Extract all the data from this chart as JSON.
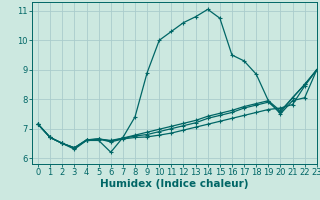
{
  "title": "",
  "xlabel": "Humidex (Indice chaleur)",
  "xlim": [
    -0.5,
    23
  ],
  "ylim": [
    5.8,
    11.3
  ],
  "xticks": [
    0,
    1,
    2,
    3,
    4,
    5,
    6,
    7,
    8,
    9,
    10,
    11,
    12,
    13,
    14,
    15,
    16,
    17,
    18,
    19,
    20,
    21,
    22,
    23
  ],
  "yticks": [
    6,
    7,
    8,
    9,
    10,
    11
  ],
  "background_color": "#cce8e0",
  "grid_color": "#aacccc",
  "line_color": "#006666",
  "lines": [
    {
      "x": [
        0,
        1,
        2,
        3,
        4,
        5,
        6,
        7,
        8,
        9,
        10,
        11,
        12,
        13,
        14,
        15,
        16,
        17,
        18,
        19,
        20,
        21,
        22,
        23
      ],
      "y": [
        7.15,
        6.7,
        6.5,
        6.3,
        6.6,
        6.6,
        6.2,
        6.7,
        7.4,
        8.9,
        10.0,
        10.3,
        10.6,
        10.8,
        11.05,
        10.75,
        9.5,
        9.3,
        8.85,
        7.95,
        7.5,
        7.95,
        8.05,
        9.0
      ]
    },
    {
      "x": [
        0,
        1,
        2,
        3,
        4,
        5,
        6,
        7,
        8,
        9,
        10,
        11,
        12,
        13,
        14,
        15,
        16,
        17,
        18,
        19,
        20,
        21,
        22,
        23
      ],
      "y": [
        7.15,
        6.7,
        6.5,
        6.35,
        6.6,
        6.65,
        6.55,
        6.65,
        6.7,
        6.72,
        6.78,
        6.85,
        6.95,
        7.05,
        7.15,
        7.25,
        7.35,
        7.45,
        7.55,
        7.65,
        7.7,
        7.82,
        8.45,
        9.0
      ]
    },
    {
      "x": [
        0,
        1,
        2,
        3,
        4,
        5,
        6,
        7,
        8,
        9,
        10,
        11,
        12,
        13,
        14,
        15,
        16,
        17,
        18,
        19,
        20,
        21,
        22,
        23
      ],
      "y": [
        7.15,
        6.7,
        6.5,
        6.35,
        6.62,
        6.65,
        6.58,
        6.67,
        6.75,
        6.8,
        6.9,
        7.0,
        7.1,
        7.2,
        7.35,
        7.45,
        7.55,
        7.7,
        7.8,
        7.9,
        7.55,
        8.05,
        8.5,
        9.0
      ]
    },
    {
      "x": [
        0,
        1,
        2,
        3,
        4,
        5,
        6,
        7,
        8,
        9,
        10,
        11,
        12,
        13,
        14,
        15,
        16,
        17,
        18,
        19,
        20,
        21,
        22,
        23
      ],
      "y": [
        7.15,
        6.7,
        6.5,
        6.35,
        6.62,
        6.65,
        6.6,
        6.68,
        6.78,
        6.88,
        6.98,
        7.08,
        7.18,
        7.28,
        7.42,
        7.52,
        7.62,
        7.75,
        7.85,
        7.95,
        7.6,
        8.05,
        8.5,
        9.0
      ]
    }
  ],
  "marker": "+",
  "markersize": 3,
  "linewidth": 0.9,
  "font_color": "#006666",
  "tick_label_fontsize": 6,
  "xlabel_fontsize": 7.5
}
